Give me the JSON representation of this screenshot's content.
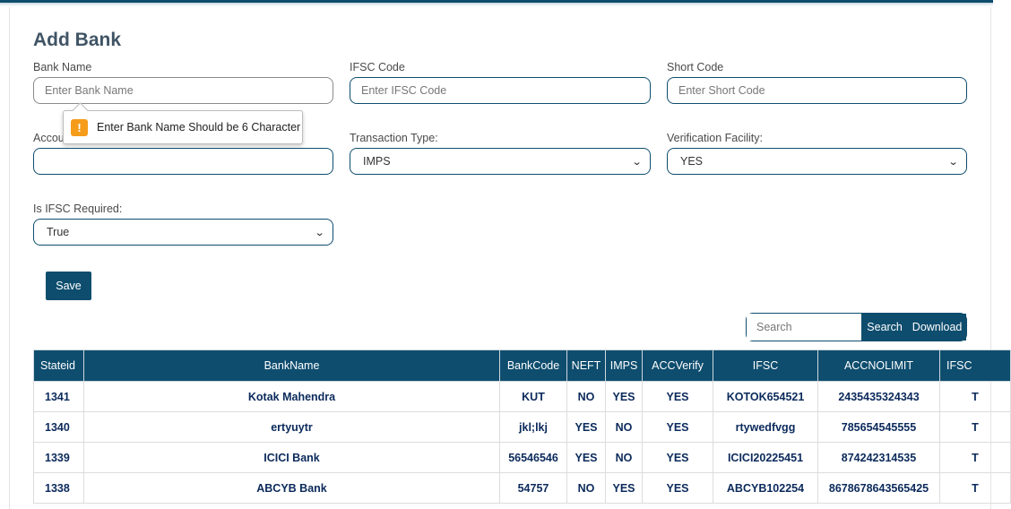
{
  "form": {
    "title": "Add Bank",
    "bank_name": {
      "label": "Bank Name",
      "placeholder": "Enter Bank Name",
      "value": ""
    },
    "ifsc_code": {
      "label": "IFSC Code",
      "placeholder": "Enter IFSC Code",
      "value": ""
    },
    "short_code": {
      "label": "Short Code",
      "placeholder": "Enter Short Code",
      "value": ""
    },
    "account_field": {
      "label": "Accou",
      "value": ""
    },
    "transaction_type": {
      "label": "Transaction Type:",
      "value": "IMPS"
    },
    "verification_facility": {
      "label": "Verification Facility:",
      "value": "YES"
    },
    "is_ifsc_required": {
      "label": "Is IFSC Required:",
      "value": "True"
    },
    "save_label": "Save"
  },
  "validation_tooltip": {
    "icon": "warning-icon",
    "icon_glyph": "!",
    "message": "Enter Bank Name Should be 6 Character"
  },
  "toolbar": {
    "search_placeholder": "Search",
    "search_label": "Search",
    "download_label": "Download"
  },
  "table": {
    "columns": [
      "Stateid",
      "BankName",
      "BankCode",
      "NEFT",
      "IMPS",
      "ACCVerify",
      "IFSC",
      "ACCNOLIMIT",
      "IFSC"
    ],
    "rows": [
      [
        "1341",
        "Kotak Mahendra",
        "KUT",
        "NO",
        "YES",
        "YES",
        "KOTOK654521",
        "2435435324343",
        "T"
      ],
      [
        "1340",
        "ertyuytr",
        "jkl;lkj",
        "YES",
        "NO",
        "YES",
        "rtywedfvgg",
        "785654545555",
        "T"
      ],
      [
        "1339",
        "ICICI Bank",
        "56546546",
        "YES",
        "NO",
        "YES",
        "ICICI20225451",
        "874242314535",
        "T"
      ],
      [
        "1338",
        "ABCYB Bank",
        "54757",
        "NO",
        "YES",
        "YES",
        "ABCYB102254",
        "8678678643565425",
        "T"
      ]
    ]
  },
  "colors": {
    "primary": "#0e4d6e",
    "warning": "#f59c1a",
    "table_text": "#0b2a5b"
  }
}
